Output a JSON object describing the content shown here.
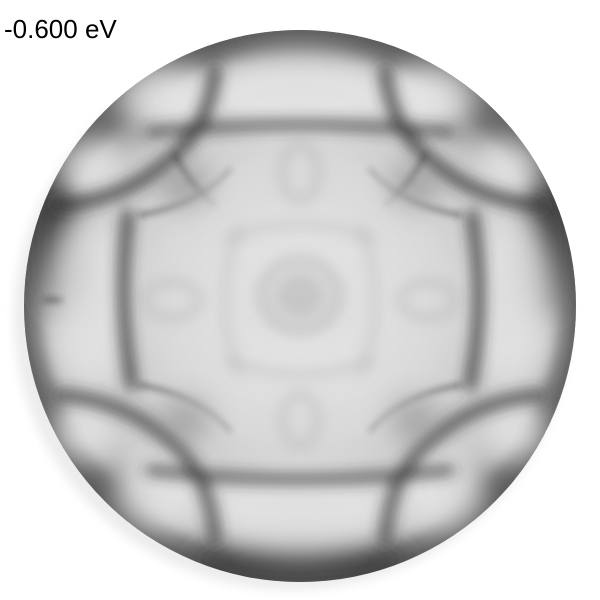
{
  "energy_label": "-0.600 eV",
  "image": {
    "description_icon": "momentum-map-image",
    "colors": {
      "background": "#ffffff",
      "disk_base": "#d8d8d8",
      "feature_dark": "#1a1a1a"
    }
  }
}
